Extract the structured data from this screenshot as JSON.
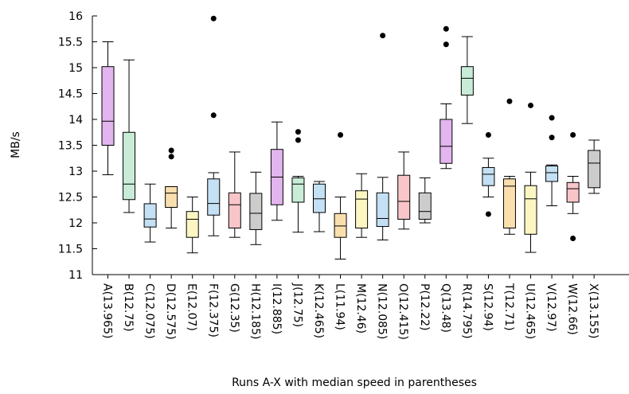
{
  "chart_data": {
    "type": "box",
    "xlabel": "Runs A-X with median speed in parentheses",
    "ylabel": "MB/s",
    "ylim": [
      11,
      16
    ],
    "yticks": [
      "11",
      "11.5",
      "12",
      "12.5",
      "13",
      "13.5",
      "14",
      "14.5",
      "15",
      "15.5",
      "16"
    ],
    "grid": false,
    "boxes": [
      {
        "label": "A(13.965)",
        "color": "#e2b5ee",
        "whisker_low": 12.93,
        "q1": 13.5,
        "median": 13.965,
        "q3": 15.02,
        "whisker_high": 15.5,
        "outliers": []
      },
      {
        "label": "B(12.75)",
        "color": "#c8ecd8",
        "whisker_low": 12.2,
        "q1": 12.45,
        "median": 12.75,
        "q3": 13.75,
        "whisker_high": 15.15,
        "outliers": []
      },
      {
        "label": "C(12.075)",
        "color": "#c4e0f4",
        "whisker_low": 11.63,
        "q1": 11.92,
        "median": 12.075,
        "q3": 12.37,
        "whisker_high": 12.75,
        "outliers": []
      },
      {
        "label": "D(12.575)",
        "color": "#f9dfae",
        "whisker_low": 11.9,
        "q1": 12.3,
        "median": 12.575,
        "q3": 12.7,
        "whisker_high": 12.7,
        "outliers": [
          13.28,
          13.4
        ]
      },
      {
        "label": "E(12.07)",
        "color": "#fbf6c2",
        "whisker_low": 11.42,
        "q1": 11.72,
        "median": 12.07,
        "q3": 12.22,
        "whisker_high": 12.5,
        "outliers": []
      },
      {
        "label": "F(12.375)",
        "color": "#c4e0f4",
        "whisker_low": 11.75,
        "q1": 12.15,
        "median": 12.375,
        "q3": 12.85,
        "whisker_high": 12.97,
        "outliers": [
          14.08,
          15.95
        ]
      },
      {
        "label": "G(12.35)",
        "color": "#f8c5c8",
        "whisker_low": 11.72,
        "q1": 11.9,
        "median": 12.35,
        "q3": 12.58,
        "whisker_high": 13.37,
        "outliers": []
      },
      {
        "label": "H(12.185)",
        "color": "#cccccc",
        "whisker_low": 11.58,
        "q1": 11.87,
        "median": 12.185,
        "q3": 12.57,
        "whisker_high": 12.98,
        "outliers": []
      },
      {
        "label": "I(12.885)",
        "color": "#e2b5ee",
        "whisker_low": 12.05,
        "q1": 12.35,
        "median": 12.885,
        "q3": 13.42,
        "whisker_high": 13.95,
        "outliers": []
      },
      {
        "label": "J(12.75)",
        "color": "#c8ecd8",
        "whisker_low": 11.82,
        "q1": 12.4,
        "median": 12.75,
        "q3": 12.87,
        "whisker_high": 12.9,
        "outliers": [
          13.6,
          13.76
        ]
      },
      {
        "label": "K(12.465)",
        "color": "#c4e0f4",
        "whisker_low": 11.83,
        "q1": 12.2,
        "median": 12.465,
        "q3": 12.75,
        "whisker_high": 12.8,
        "outliers": []
      },
      {
        "label": "L(11.94)",
        "color": "#f9dfae",
        "whisker_low": 11.3,
        "q1": 11.72,
        "median": 11.94,
        "q3": 12.18,
        "whisker_high": 12.5,
        "outliers": [
          13.7
        ]
      },
      {
        "label": "M(12.46)",
        "color": "#fbf6c2",
        "whisker_low": 11.72,
        "q1": 11.9,
        "median": 12.46,
        "q3": 12.62,
        "whisker_high": 12.95,
        "outliers": []
      },
      {
        "label": "N(12.085)",
        "color": "#c4e0f4",
        "whisker_low": 11.67,
        "q1": 11.93,
        "median": 12.085,
        "q3": 12.58,
        "whisker_high": 12.88,
        "outliers": [
          15.62
        ]
      },
      {
        "label": "O(12.415)",
        "color": "#f8c5c8",
        "whisker_low": 11.88,
        "q1": 12.07,
        "median": 12.415,
        "q3": 12.92,
        "whisker_high": 13.37,
        "outliers": []
      },
      {
        "label": "P(12.22)",
        "color": "#cccccc",
        "whisker_low": 12.0,
        "q1": 12.07,
        "median": 12.22,
        "q3": 12.58,
        "whisker_high": 12.87,
        "outliers": []
      },
      {
        "label": "Q(13.48)",
        "color": "#e2b5ee",
        "whisker_low": 13.05,
        "q1": 13.15,
        "median": 13.48,
        "q3": 14.0,
        "whisker_high": 14.3,
        "outliers": [
          15.45,
          15.75
        ]
      },
      {
        "label": "R(14.795)",
        "color": "#c8ecd8",
        "whisker_low": 13.92,
        "q1": 14.47,
        "median": 14.795,
        "q3": 15.02,
        "whisker_high": 15.6,
        "outliers": []
      },
      {
        "label": "S(12.94)",
        "color": "#c4e0f4",
        "whisker_low": 12.5,
        "q1": 12.72,
        "median": 12.94,
        "q3": 13.07,
        "whisker_high": 13.25,
        "outliers": [
          12.17,
          13.7
        ]
      },
      {
        "label": "T(12.71)",
        "color": "#f9dfae",
        "whisker_low": 11.78,
        "q1": 11.9,
        "median": 12.71,
        "q3": 12.85,
        "whisker_high": 12.9,
        "outliers": [
          14.35
        ]
      },
      {
        "label": "U(12.465)",
        "color": "#fbf6c2",
        "whisker_low": 11.43,
        "q1": 11.78,
        "median": 12.465,
        "q3": 12.72,
        "whisker_high": 12.98,
        "outliers": [
          14.27
        ]
      },
      {
        "label": "V(12.97)",
        "color": "#c4e0f4",
        "whisker_low": 12.33,
        "q1": 12.8,
        "median": 12.97,
        "q3": 13.1,
        "whisker_high": 13.12,
        "outliers": [
          13.65,
          14.03
        ]
      },
      {
        "label": "W(12.66)",
        "color": "#f8c5c8",
        "whisker_low": 12.18,
        "q1": 12.4,
        "median": 12.66,
        "q3": 12.78,
        "whisker_high": 12.9,
        "outliers": [
          11.7,
          13.7
        ]
      },
      {
        "label": "X(13.155)",
        "color": "#cccccc",
        "whisker_low": 12.57,
        "q1": 12.68,
        "median": 13.155,
        "q3": 13.4,
        "whisker_high": 13.6,
        "outliers": []
      }
    ]
  }
}
